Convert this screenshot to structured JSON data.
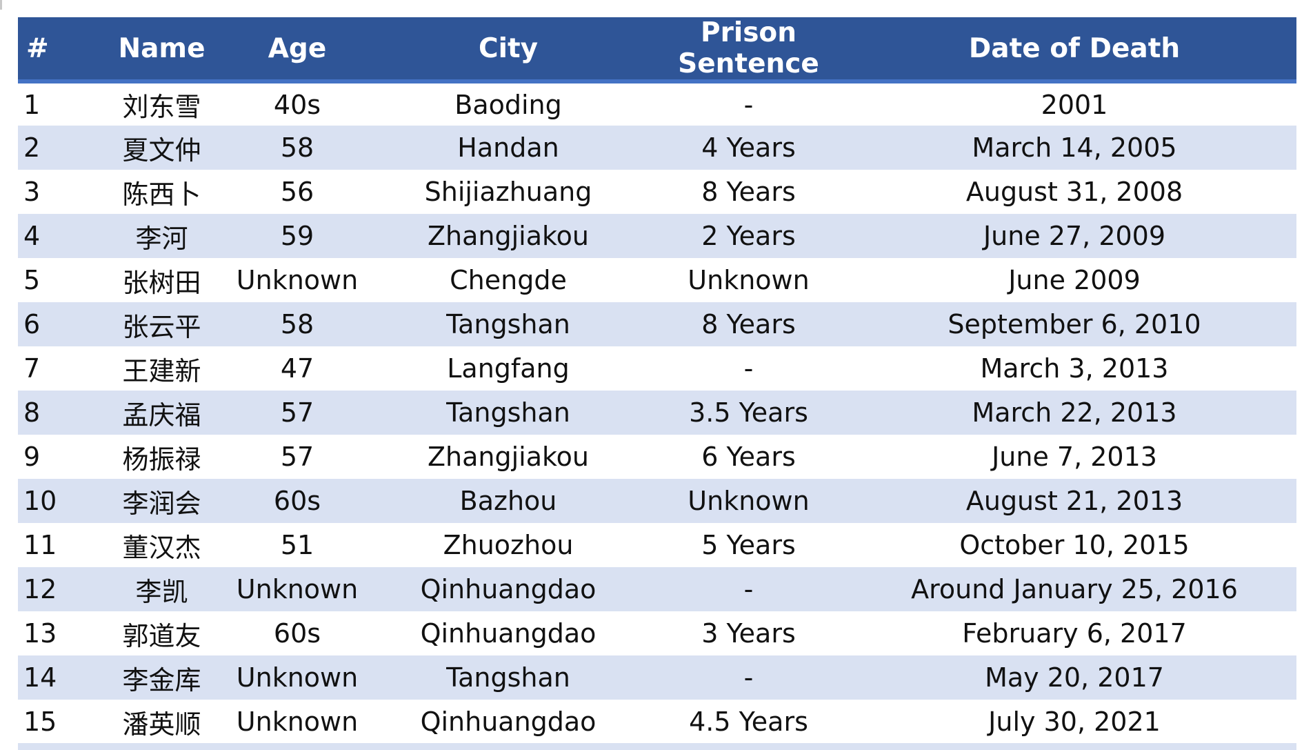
{
  "colors": {
    "header_bg": "#2f5597",
    "header_rule": "#4472c4",
    "header_text": "#ffffff",
    "band_even": "#d9e1f2",
    "band_odd": "#ffffff"
  },
  "table": {
    "headers": [
      "#",
      "Name",
      "Age",
      "City",
      "Prison Sentence",
      "Date of Death"
    ],
    "rows": [
      [
        "1",
        "刘东雪",
        "40s",
        "Baoding",
        "-",
        "2001"
      ],
      [
        "2",
        "夏文仲",
        "58",
        "Handan",
        "4 Years",
        "March 14, 2005"
      ],
      [
        "3",
        "陈西卜",
        "56",
        "Shijiazhuang",
        "8 Years",
        "August 31, 2008"
      ],
      [
        "4",
        "李河",
        "59",
        "Zhangjiakou",
        "2 Years",
        "June 27, 2009"
      ],
      [
        "5",
        "张树田",
        "Unknown",
        "Chengde",
        "Unknown",
        "June 2009"
      ],
      [
        "6",
        "张云平",
        "58",
        "Tangshan",
        "8 Years",
        "September 6, 2010"
      ],
      [
        "7",
        "王建新",
        "47",
        "Langfang",
        "-",
        "March 3, 2013"
      ],
      [
        "8",
        "孟庆福",
        "57",
        "Tangshan",
        "3.5 Years",
        "March 22, 2013"
      ],
      [
        "9",
        "杨振禄",
        "57",
        "Zhangjiakou",
        "6 Years",
        "June 7, 2013"
      ],
      [
        "10",
        "李润会",
        "60s",
        "Bazhou",
        "Unknown",
        "August 21, 2013"
      ],
      [
        "11",
        "董汉杰",
        "51",
        "Zhuozhou",
        "5 Years",
        "October 10, 2015"
      ],
      [
        "12",
        "李凯",
        "Unknown",
        "Qinhuangdao",
        "-",
        "Around January 25, 2016"
      ],
      [
        "13",
        "郭道友",
        "60s",
        "Qinhuangdao",
        "3 Years",
        "February 6, 2017"
      ],
      [
        "14",
        "李金库",
        "Unknown",
        "Tangshan",
        "-",
        "May 20, 2017"
      ],
      [
        "15",
        "潘英顺",
        "Unknown",
        "Qinhuangdao",
        "4.5 Years",
        "July 30, 2021"
      ]
    ]
  }
}
